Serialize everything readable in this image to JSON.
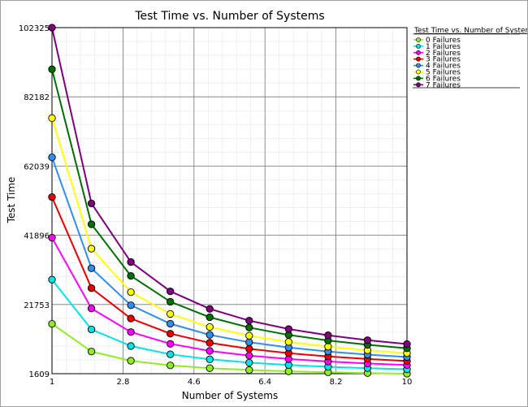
{
  "chart_data": {
    "type": "line",
    "title": "Test Time vs. Number of Systems",
    "xlabel": "Number of Systems",
    "ylabel": "Test Time",
    "xlim": [
      1,
      10
    ],
    "ylim": [
      1609,
      102325
    ],
    "x_ticks": [
      "1",
      "2.8",
      "4.6",
      "6.4",
      "8.2",
      "10"
    ],
    "y_ticks": [
      "1609",
      "21753",
      "41896",
      "62039",
      "82182",
      "102325"
    ],
    "grid": true,
    "legend": {
      "title": "Test Time vs. Number of Systems",
      "placement": "top-right"
    },
    "x": [
      1,
      2,
      3,
      4,
      5,
      6,
      7,
      8,
      9,
      10
    ],
    "series": [
      {
        "name": "0 Failures",
        "color": "#90ee20",
        "values": [
          16119,
          8060,
          5373,
          4030,
          3224,
          2687,
          2303,
          2015,
          1791,
          1612
        ]
      },
      {
        "name": "1 Failures",
        "color": "#00e5e5",
        "values": [
          28986,
          14493,
          9662,
          7247,
          5797,
          4831,
          4141,
          3623,
          3221,
          2899
        ]
      },
      {
        "name": "2 Failures",
        "color": "#ff00ff",
        "values": [
          41197,
          20599,
          13732,
          10299,
          8239,
          6866,
          5885,
          5150,
          4577,
          4120
        ]
      },
      {
        "name": "3 Failures",
        "color": "#ee0000",
        "values": [
          53010,
          26505,
          17670,
          13253,
          10602,
          8835,
          7573,
          6626,
          5890,
          5301
        ]
      },
      {
        "name": "4 Failures",
        "color": "#2f8fef",
        "values": [
          64586,
          32293,
          21529,
          16147,
          12917,
          10764,
          9227,
          8073,
          7176,
          6459
        ]
      },
      {
        "name": "5 Failures",
        "color": "#ffff00",
        "values": [
          76004,
          38002,
          25335,
          19001,
          15201,
          12667,
          10858,
          9501,
          8445,
          7600
        ]
      },
      {
        "name": "6 Failures",
        "color": "#007000",
        "values": [
          90200,
          45100,
          30067,
          22550,
          18040,
          15033,
          12886,
          11275,
          10022,
          9020
        ]
      },
      {
        "name": "7 Failures",
        "color": "#800080",
        "values": [
          102325,
          51163,
          34108,
          25581,
          20465,
          17054,
          14618,
          12791,
          11369,
          10233
        ]
      }
    ]
  }
}
